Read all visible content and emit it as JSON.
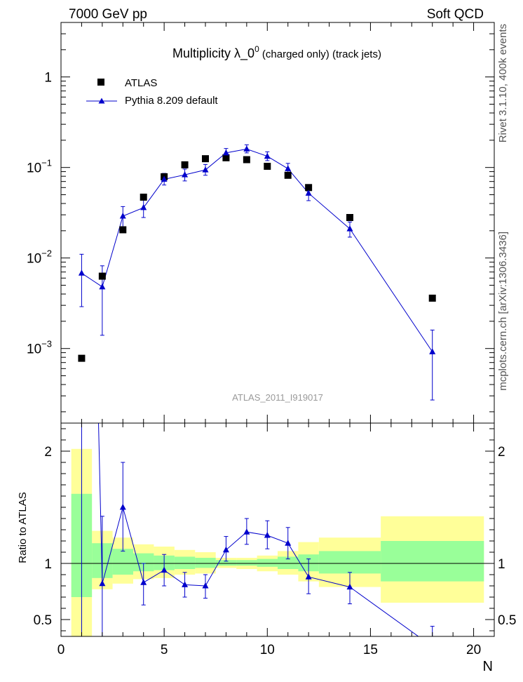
{
  "header": {
    "left": "7000 GeV pp",
    "right": "Soft QCD"
  },
  "side_text": {
    "rivet": "Rivet 3.1.10,  400k events",
    "mcplots": "mcplots.cern.ch [arXiv:1306.3436]"
  },
  "chart_data": {
    "type": "scatter",
    "title_main": "Multiplicity  λ_0",
    "title_sup": "0",
    "title_rest": " (charged only) (track jets)",
    "watermark": "ATLAS_2011_I919017",
    "xlabel": "N",
    "ylabel_ratio": "Ratio to ATLAS",
    "xlim": [
      0,
      21
    ],
    "ylim_main": [
      0.00015,
      4
    ],
    "ylim_ratio": [
      0.35,
      2.25
    ],
    "yscale_main": "log",
    "x_ticks": [
      "0",
      "5",
      "10",
      "15",
      "20"
    ],
    "y_ticks_main": [
      {
        "base": "1",
        "exp": ""
      },
      {
        "base": "10",
        "exp": "−1"
      },
      {
        "base": "10",
        "exp": "−2"
      },
      {
        "base": "10",
        "exp": "−3"
      }
    ],
    "y_ticks_ratio": [
      "2",
      "1",
      "0.5"
    ],
    "legend": {
      "position": "top-left",
      "data_label": "ATLAS",
      "mc_label": "Pythia 8.209 default"
    },
    "colors": {
      "data": "#000000",
      "mc": "#0000cc",
      "band_inner": "#99ff99",
      "band_outer": "#ffff99"
    },
    "data": [
      {
        "x": 1,
        "y": 0.00078
      },
      {
        "x": 2,
        "y": 0.0063
      },
      {
        "x": 3,
        "y": 0.0205
      },
      {
        "x": 4,
        "y": 0.047
      },
      {
        "x": 5,
        "y": 0.079
      },
      {
        "x": 6,
        "y": 0.107
      },
      {
        "x": 7,
        "y": 0.125
      },
      {
        "x": 8,
        "y": 0.128
      },
      {
        "x": 9,
        "y": 0.122
      },
      {
        "x": 10,
        "y": 0.103
      },
      {
        "x": 11,
        "y": 0.082
      },
      {
        "x": 12,
        "y": 0.06
      },
      {
        "x": 14,
        "y": 0.028
      },
      {
        "x": 18,
        "y": 0.0036
      }
    ],
    "mc": [
      {
        "x": 1,
        "y": 0.0068,
        "lo": 0.0029,
        "hi": 0.011
      },
      {
        "x": 2,
        "y": 0.0048,
        "lo": 0.0014,
        "hi": 0.0082
      },
      {
        "x": 3,
        "y": 0.029,
        "lo": 0.022,
        "hi": 0.037
      },
      {
        "x": 4,
        "y": 0.036,
        "lo": 0.028,
        "hi": 0.045
      },
      {
        "x": 5,
        "y": 0.074,
        "lo": 0.064,
        "hi": 0.086
      },
      {
        "x": 6,
        "y": 0.083,
        "lo": 0.071,
        "hi": 0.096
      },
      {
        "x": 7,
        "y": 0.094,
        "lo": 0.082,
        "hi": 0.108
      },
      {
        "x": 8,
        "y": 0.145,
        "lo": 0.13,
        "hi": 0.162
      },
      {
        "x": 9,
        "y": 0.16,
        "lo": 0.145,
        "hi": 0.178
      },
      {
        "x": 10,
        "y": 0.133,
        "lo": 0.119,
        "hi": 0.149
      },
      {
        "x": 11,
        "y": 0.097,
        "lo": 0.085,
        "hi": 0.111
      },
      {
        "x": 12,
        "y": 0.052,
        "lo": 0.043,
        "hi": 0.061
      },
      {
        "x": 14,
        "y": 0.021,
        "lo": 0.017,
        "hi": 0.025
      },
      {
        "x": 18,
        "y": 0.00092,
        "lo": 0.00027,
        "hi": 0.0016
      }
    ],
    "ratio_mc": [
      {
        "x": 1,
        "y": 8.7,
        "lo": 0.0,
        "hi": 14.0
      },
      {
        "x": 2,
        "y": 0.82,
        "lo": 0.22,
        "hi": 1.42
      },
      {
        "x": 3,
        "y": 1.5,
        "lo": 1.11,
        "hi": 1.9
      },
      {
        "x": 4,
        "y": 0.83,
        "lo": 0.63,
        "hi": 1.0
      },
      {
        "x": 5,
        "y": 0.94,
        "lo": 0.8,
        "hi": 1.08
      },
      {
        "x": 6,
        "y": 0.81,
        "lo": 0.7,
        "hi": 0.92
      },
      {
        "x": 7,
        "y": 0.8,
        "lo": 0.69,
        "hi": 0.9
      },
      {
        "x": 8,
        "y": 1.12,
        "lo": 1.02,
        "hi": 1.24
      },
      {
        "x": 9,
        "y": 1.28,
        "lo": 1.17,
        "hi": 1.4
      },
      {
        "x": 10,
        "y": 1.25,
        "lo": 1.13,
        "hi": 1.38
      },
      {
        "x": 11,
        "y": 1.18,
        "lo": 1.04,
        "hi": 1.32
      },
      {
        "x": 12,
        "y": 0.88,
        "lo": 0.73,
        "hi": 1.04
      },
      {
        "x": 14,
        "y": 0.79,
        "lo": 0.64,
        "hi": 0.92
      },
      {
        "x": 18,
        "y": 0.26,
        "lo": 0.08,
        "hi": 0.44
      }
    ],
    "bands": [
      {
        "x0": 0.5,
        "x1": 1.5,
        "in_lo": 0.7,
        "in_hi": 1.62,
        "out_lo": 0.3,
        "out_hi": 2.02
      },
      {
        "x0": 1.5,
        "x1": 2.5,
        "in_lo": 0.87,
        "in_hi": 1.18,
        "out_lo": 0.77,
        "out_hi": 1.29
      },
      {
        "x0": 2.5,
        "x1": 3.5,
        "in_lo": 0.9,
        "in_hi": 1.13,
        "out_lo": 0.82,
        "out_hi": 1.23
      },
      {
        "x0": 3.5,
        "x1": 4.5,
        "in_lo": 0.93,
        "in_hi": 1.09,
        "out_lo": 0.86,
        "out_hi": 1.17
      },
      {
        "x0": 4.5,
        "x1": 5.5,
        "in_lo": 0.94,
        "in_hi": 1.07,
        "out_lo": 0.87,
        "out_hi": 1.15
      },
      {
        "x0": 5.5,
        "x1": 6.5,
        "in_lo": 0.95,
        "in_hi": 1.06,
        "out_lo": 0.9,
        "out_hi": 1.12
      },
      {
        "x0": 6.5,
        "x1": 7.5,
        "in_lo": 0.96,
        "in_hi": 1.05,
        "out_lo": 0.91,
        "out_hi": 1.1
      },
      {
        "x0": 7.5,
        "x1": 8.5,
        "in_lo": 0.98,
        "in_hi": 1.03,
        "out_lo": 0.96,
        "out_hi": 1.05
      },
      {
        "x0": 8.5,
        "x1": 9.5,
        "in_lo": 0.98,
        "in_hi": 1.03,
        "out_lo": 0.95,
        "out_hi": 1.05
      },
      {
        "x0": 9.5,
        "x1": 10.5,
        "in_lo": 0.97,
        "in_hi": 1.04,
        "out_lo": 0.93,
        "out_hi": 1.07
      },
      {
        "x0": 10.5,
        "x1": 11.5,
        "in_lo": 0.95,
        "in_hi": 1.06,
        "out_lo": 0.9,
        "out_hi": 1.11
      },
      {
        "x0": 11.5,
        "x1": 12.5,
        "in_lo": 0.93,
        "in_hi": 1.08,
        "out_lo": 0.84,
        "out_hi": 1.19
      },
      {
        "x0": 12.5,
        "x1": 15.5,
        "in_lo": 0.91,
        "in_hi": 1.11,
        "out_lo": 0.79,
        "out_hi": 1.23
      },
      {
        "x0": 15.5,
        "x1": 20.5,
        "in_lo": 0.84,
        "in_hi": 1.2,
        "out_lo": 0.65,
        "out_hi": 1.42
      }
    ]
  }
}
